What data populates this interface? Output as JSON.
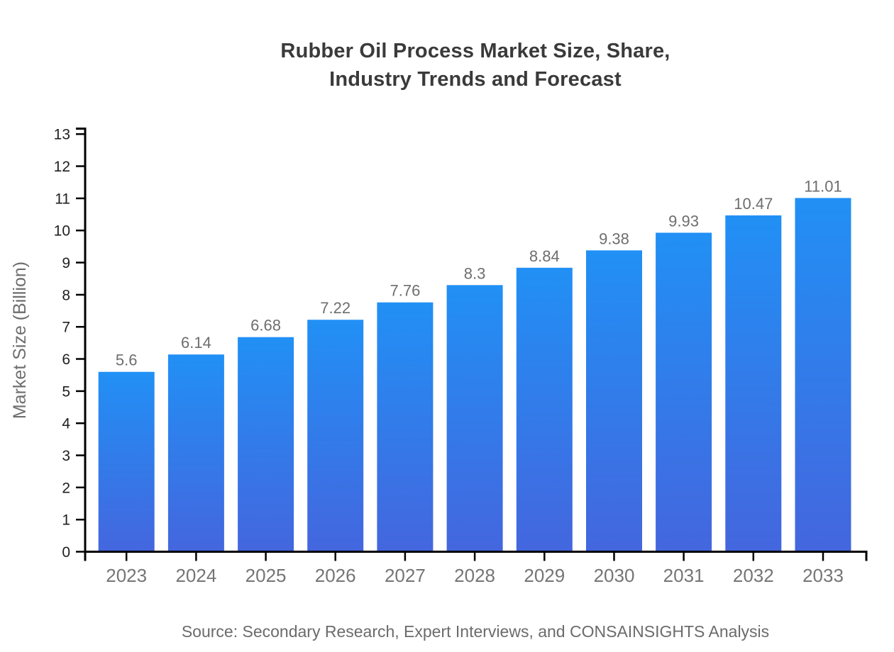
{
  "title": {
    "line1": "Rubber Oil Process Market Size, Share,",
    "line2": "Industry Trends and Forecast"
  },
  "source_note": "Source: Secondary Research, Expert Interviews, and CONSAINSIGHTS Analysis",
  "chart_data": {
    "type": "bar",
    "title": "Rubber Oil Process Market Size, Share, Industry Trends and Forecast",
    "categories": [
      "2023",
      "2024",
      "2025",
      "2026",
      "2027",
      "2028",
      "2029",
      "2030",
      "2031",
      "2032",
      "2033"
    ],
    "values": [
      5.6,
      6.14,
      6.68,
      7.22,
      7.76,
      8.3,
      8.84,
      9.38,
      9.93,
      10.47,
      11.01
    ],
    "xlabel": "",
    "ylabel": "Market Size (Billion)",
    "ylim": [
      0,
      13
    ],
    "yticks": [
      0,
      1,
      2,
      3,
      4,
      5,
      6,
      7,
      8,
      9,
      10,
      11,
      12,
      13
    ],
    "grid": false,
    "legend": null,
    "colors": {
      "bar_gradient_top": "#2190F5",
      "bar_gradient_bottom": "#4466DE",
      "axis": "#000000",
      "y_tick_label": "#1f1f1f",
      "x_tick_label": "#757575",
      "value_label": "#6e6e6e",
      "title": "#3a3a3a",
      "source": "#6b6b6b",
      "background": "#ffffff"
    }
  }
}
